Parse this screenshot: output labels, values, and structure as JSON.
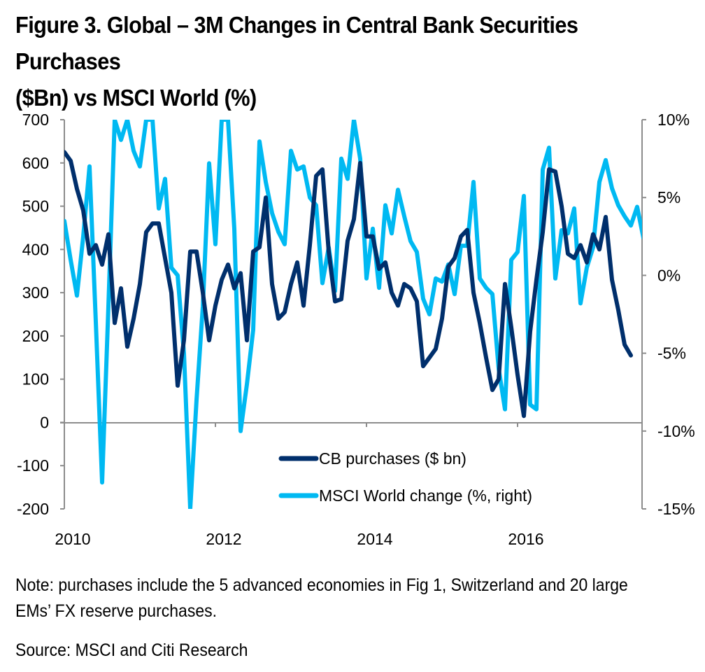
{
  "figure": {
    "title_line1": "Figure 3. Global – 3M Changes in Central Bank Securities Purchases",
    "title_line2": "($Bn) vs MSCI World (%)",
    "note_line1": "Note: purchases include the 5 advanced economies in Fig 1, Switzerland and 20 large",
    "note_line2": "EMs’ FX reserve purchases.",
    "source": "Source: MSCI and Citi Research"
  },
  "colors": {
    "cb": "#002f6c",
    "msci": "#00b9f2",
    "axis": "#8c8c8c"
  },
  "chart_data": {
    "type": "line",
    "title": "Figure 3. Global – 3M Changes in Central Bank Securities Purchases ($Bn) vs MSCI World (%)",
    "xlabel": "",
    "ylabel": "CB purchases ($ bn)",
    "ylabel_right": "MSCI World change (%)",
    "x_start": "2010-01",
    "x_frequency": "monthly",
    "x_ticks": [
      "2010",
      "2012",
      "2014",
      "2016"
    ],
    "xlim": [
      2010.0,
      2017.67
    ],
    "ylim": [
      -200,
      700
    ],
    "y_ticks": [
      "700",
      "600",
      "500",
      "400",
      "300",
      "200",
      "100",
      "0",
      "-100",
      "-200"
    ],
    "y_tick_values": [
      700,
      600,
      500,
      400,
      300,
      200,
      100,
      0,
      -100,
      -200
    ],
    "ylim_right": [
      -15,
      10
    ],
    "y_ticks_right": [
      "10%",
      "5%",
      "0%",
      "-5%",
      "-10%",
      "-15%"
    ],
    "y_tick_values_right": [
      10,
      5,
      0,
      -5,
      -10,
      -15
    ],
    "grid": false,
    "legend": "bottom-center",
    "series": [
      {
        "name": "CB purchases ($ bn)",
        "axis": "left",
        "values": [
          625,
          605,
          540,
          490,
          390,
          410,
          365,
          435,
          230,
          310,
          175,
          240,
          320,
          440,
          460,
          460,
          380,
          300,
          85,
          190,
          395,
          395,
          300,
          190,
          270,
          330,
          365,
          310,
          345,
          190,
          395,
          405,
          520,
          320,
          240,
          255,
          320,
          370,
          270,
          410,
          570,
          585,
          395,
          280,
          285,
          420,
          470,
          600,
          430,
          430,
          355,
          370,
          300,
          270,
          320,
          310,
          280,
          130,
          150,
          170,
          240,
          360,
          380,
          430,
          445,
          300,
          230,
          150,
          75,
          100,
          320,
          220,
          110,
          15,
          210,
          330,
          440,
          585,
          580,
          500,
          390,
          380,
          410,
          370,
          435,
          400,
          475,
          330,
          260,
          180,
          155
        ]
      },
      {
        "name": "MSCI World change (%, right)",
        "axis": "right",
        "values": [
          3.5,
          1.0,
          -1.3,
          2.5,
          7.0,
          -3.0,
          -13.3,
          -2.0,
          10.0,
          8.7,
          10.0,
          8.0,
          7.0,
          10.0,
          10.0,
          4.3,
          6.2,
          0.5,
          0.0,
          -5.0,
          -15.0,
          -8.0,
          -2.0,
          7.2,
          2.0,
          10.0,
          10.0,
          3.0,
          -10.0,
          -7.0,
          -3.5,
          8.6,
          6.0,
          4.0,
          2.8,
          2.0,
          8.0,
          6.8,
          7.0,
          5.0,
          4.5,
          -0.5,
          1.8,
          -1.0,
          7.5,
          6.2,
          10.0,
          7.5,
          -0.2,
          3.0,
          -0.8,
          4.5,
          2.7,
          5.5,
          3.8,
          2.2,
          1.5,
          -1.5,
          -2.5,
          -0.2,
          -0.4,
          0.7,
          -1.2,
          1.9,
          1.9,
          6.0,
          -0.2,
          -0.8,
          -1.2,
          -6.0,
          -8.6,
          1.0,
          1.5,
          5.1,
          -8.3,
          -8.6,
          6.8,
          8.2,
          -0.2,
          2.9,
          2.7,
          4.3,
          -1.8,
          0.5,
          1.8,
          6.0,
          7.4,
          5.6,
          4.5,
          3.8,
          3.2,
          4.4,
          2.4
        ]
      }
    ]
  }
}
